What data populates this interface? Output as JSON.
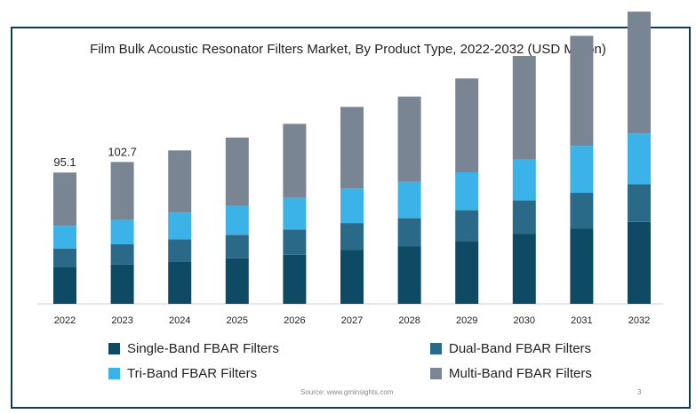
{
  "colors": {
    "frame_border": "#0f3d57",
    "series": [
      "#0e4a63",
      "#2a6a88",
      "#3bb2e8",
      "#7a8594"
    ]
  },
  "footer": {
    "source": "Source: www.gminsights.com",
    "page": "3"
  },
  "chart_data": {
    "type": "bar",
    "stacked": true,
    "title": "Film Bulk Acoustic Resonator Filters Market, By Product Type, 2022-2032 (USD Million)",
    "categories": [
      "2022",
      "2023",
      "2024",
      "2025",
      "2026",
      "2027",
      "2028",
      "2029",
      "2030",
      "2031",
      "2032"
    ],
    "series": [
      {
        "name": "Single-Band FBAR Filters",
        "values": [
          26.4,
          28.5,
          30.5,
          33.0,
          35.5,
          38.9,
          41.5,
          45.4,
          50.5,
          54.6,
          59.4
        ]
      },
      {
        "name": "Dual-Band FBAR Filters",
        "values": [
          13.5,
          14.6,
          16.2,
          17.0,
          18.3,
          19.6,
          20.5,
          22.4,
          24.4,
          25.8,
          27.3
        ]
      },
      {
        "name": "Tri-Band FBAR Filters",
        "values": [
          16.6,
          18.0,
          19.5,
          20.8,
          23.0,
          24.9,
          26.4,
          27.4,
          30.0,
          34.0,
          36.7
        ]
      },
      {
        "name": "Multi-Band FBAR Filters",
        "values": [
          38.6,
          41.6,
          44.9,
          49.6,
          53.5,
          59.2,
          61.7,
          68.0,
          74.6,
          79.7,
          88.2
        ]
      }
    ],
    "data_labels": [
      {
        "category": "2022",
        "text": "95.1"
      },
      {
        "category": "2023",
        "text": "102.7"
      }
    ],
    "ylim": [
      0,
      220
    ],
    "grid": false,
    "y_axis_visible": false,
    "legend_position": "bottom"
  }
}
